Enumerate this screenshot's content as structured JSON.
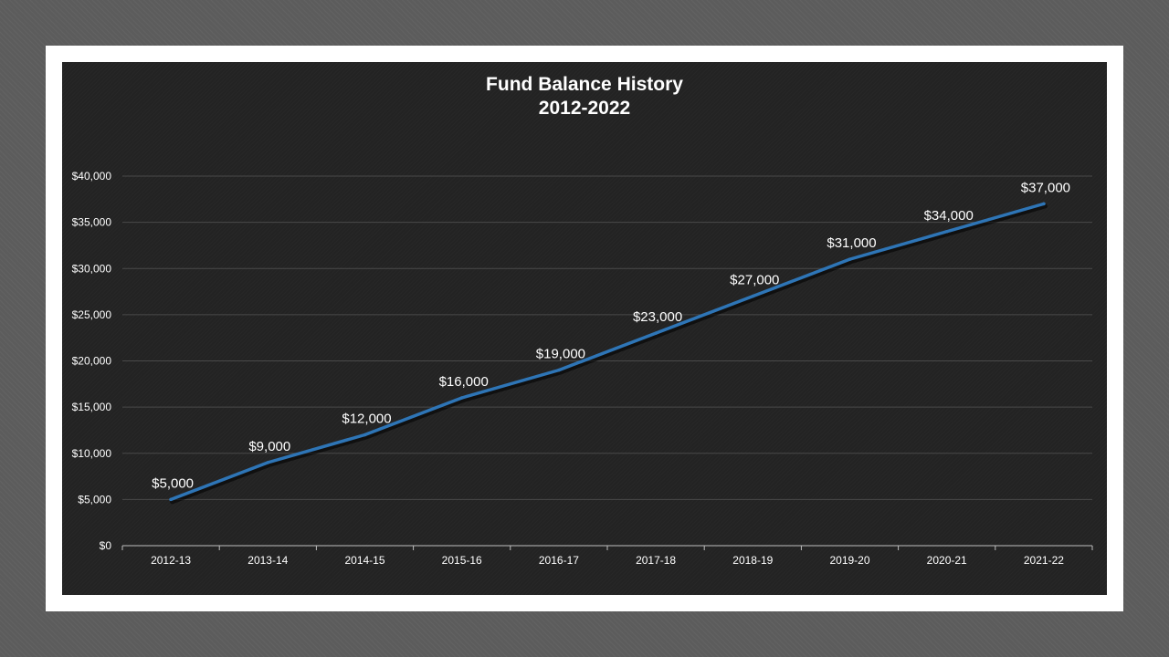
{
  "chart_data": {
    "type": "line",
    "title": "Fund Balance History",
    "subtitle": "2012-2022",
    "categories": [
      "2012-13",
      "2013-14",
      "2014-15",
      "2015-16",
      "2016-17",
      "2017-18",
      "2018-19",
      "2019-20",
      "2020-21",
      "2021-22"
    ],
    "series": [
      {
        "values": [
          5000,
          9000,
          12000,
          16000,
          19000,
          23000,
          27000,
          31000,
          34000,
          37000
        ],
        "data_labels": [
          "$5,000",
          "$9,000",
          "$12,000",
          "$16,000",
          "$19,000",
          "$23,000",
          "$27,000",
          "$31,000",
          "$34,000",
          "$37,000"
        ],
        "color": "#2e75b6"
      }
    ],
    "ylim": [
      0,
      40000
    ],
    "yticks": [
      0,
      5000,
      10000,
      15000,
      20000,
      25000,
      30000,
      35000,
      40000
    ],
    "ytick_labels": [
      "$0",
      "$5,000",
      "$10,000",
      "$15,000",
      "$20,000",
      "$25,000",
      "$30,000",
      "$35,000",
      "$40,000"
    ],
    "grid": true,
    "legend": "none",
    "background": "#232323",
    "text_color": "#ffffff"
  }
}
